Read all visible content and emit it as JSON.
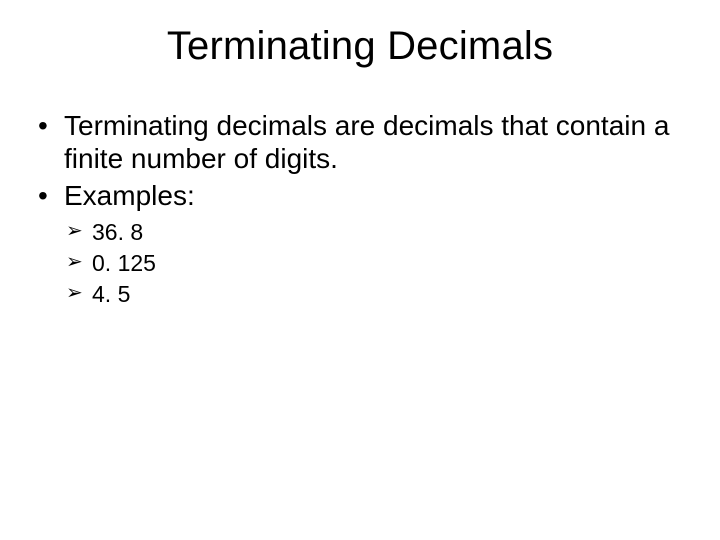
{
  "slide": {
    "title": "Terminating Decimals",
    "background_color": "#ffffff",
    "text_color": "#000000",
    "title_fontsize_pt": 40,
    "body_fontsize_pt": 28,
    "sub_fontsize_pt": 23,
    "font_family": "Arial",
    "bullets": [
      {
        "text": "Terminating decimals are decimals that contain a finite number of digits."
      },
      {
        "text": "Examples:",
        "sub": [
          "36. 8",
          "0. 125",
          "4. 5"
        ]
      }
    ],
    "bullet_glyph_level1": "•",
    "bullet_glyph_level2": "➢"
  }
}
